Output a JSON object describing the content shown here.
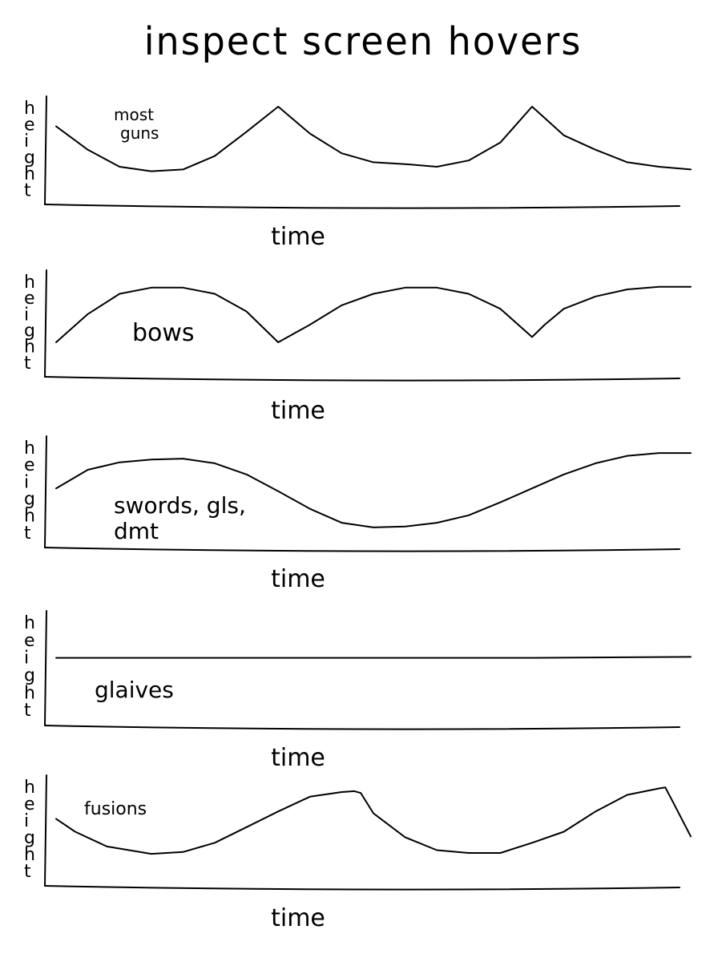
{
  "title": "inspect screen hovers",
  "chart_data": [
    {
      "type": "line",
      "ylabel": "height",
      "xlabel": "time",
      "annotation": "most guns",
      "ylim": [
        0,
        1
      ],
      "x": [
        0,
        5,
        10,
        15,
        20,
        25,
        30,
        35,
        40,
        45,
        50,
        55,
        60,
        65,
        70,
        75,
        80,
        85,
        90,
        95,
        100
      ],
      "values": [
        0.78,
        0.52,
        0.33,
        0.28,
        0.3,
        0.45,
        0.72,
        1.0,
        0.7,
        0.48,
        0.38,
        0.36,
        0.33,
        0.4,
        0.6,
        1.0,
        0.68,
        0.52,
        0.38,
        0.33,
        0.3
      ]
    },
    {
      "type": "line",
      "ylabel": "height",
      "xlabel": "time",
      "annotation": "bows",
      "ylim": [
        0,
        1
      ],
      "x": [
        0,
        5,
        10,
        15,
        20,
        25,
        30,
        35,
        38,
        40,
        45,
        50,
        55,
        60,
        65,
        70,
        75,
        77,
        80,
        85,
        90,
        95,
        100
      ],
      "values": [
        0.3,
        0.62,
        0.85,
        0.92,
        0.92,
        0.85,
        0.65,
        0.3,
        0.42,
        0.5,
        0.72,
        0.85,
        0.92,
        0.92,
        0.85,
        0.68,
        0.36,
        0.5,
        0.68,
        0.82,
        0.9,
        0.93,
        0.93
      ]
    },
    {
      "type": "line",
      "ylabel": "height",
      "xlabel": "time",
      "annotation": "swords, gls, dmt",
      "ylim": [
        0,
        1
      ],
      "x": [
        0,
        5,
        10,
        15,
        20,
        25,
        30,
        35,
        40,
        45,
        50,
        55,
        60,
        65,
        70,
        75,
        80,
        85,
        90,
        95,
        100
      ],
      "values": [
        0.55,
        0.75,
        0.83,
        0.86,
        0.87,
        0.82,
        0.7,
        0.52,
        0.33,
        0.18,
        0.13,
        0.14,
        0.18,
        0.26,
        0.4,
        0.55,
        0.7,
        0.82,
        0.9,
        0.93,
        0.93
      ]
    },
    {
      "type": "line",
      "ylabel": "height",
      "xlabel": "time",
      "annotation": "glaives",
      "ylim": [
        0,
        1
      ],
      "x": [
        0,
        25,
        50,
        75,
        100
      ],
      "values": [
        0.62,
        0.62,
        0.62,
        0.62,
        0.63
      ]
    },
    {
      "type": "line",
      "ylabel": "height",
      "xlabel": "time",
      "annotation": "fusions",
      "ylim": [
        0,
        1
      ],
      "x": [
        0,
        3,
        8,
        15,
        20,
        25,
        30,
        35,
        40,
        45,
        47,
        48,
        50,
        55,
        60,
        65,
        70,
        75,
        80,
        85,
        90,
        95,
        96,
        97,
        100
      ],
      "values": [
        0.64,
        0.5,
        0.34,
        0.26,
        0.28,
        0.38,
        0.55,
        0.72,
        0.88,
        0.93,
        0.94,
        0.92,
        0.7,
        0.44,
        0.3,
        0.27,
        0.27,
        0.38,
        0.5,
        0.72,
        0.9,
        0.97,
        0.98,
        0.85,
        0.45
      ]
    }
  ]
}
